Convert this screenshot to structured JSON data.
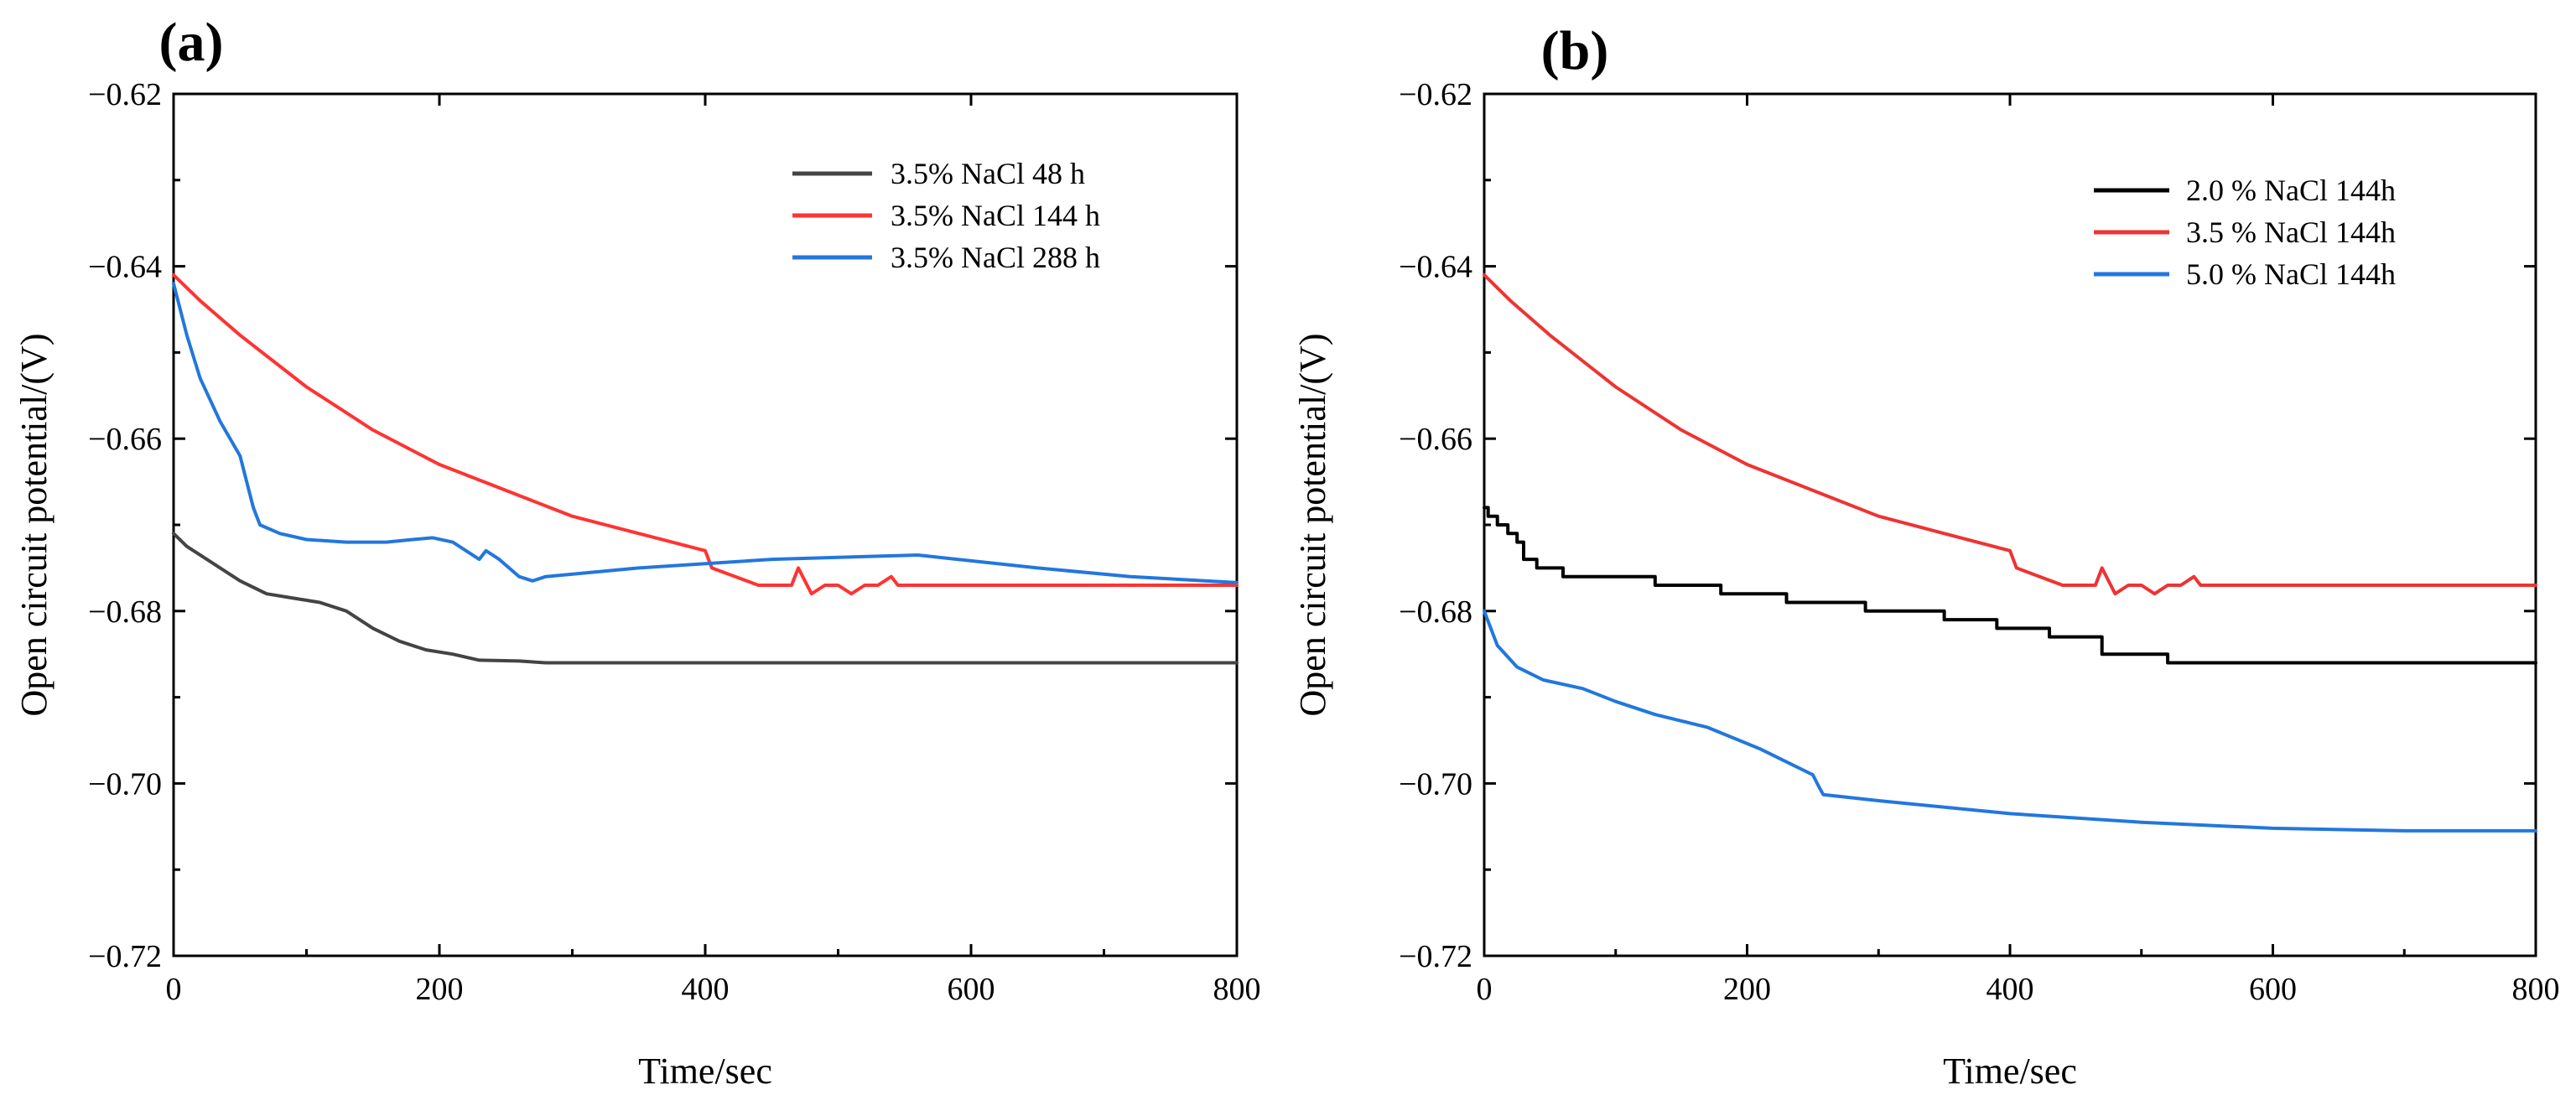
{
  "figure": {
    "panels": [
      "(a)",
      "(b)"
    ]
  },
  "chart_data": [
    {
      "type": "line",
      "panel_label": "(a)",
      "title": "",
      "xlabel": "Time/sec",
      "ylabel": "Open circuit potential/(V)",
      "xlim": [
        0,
        800
      ],
      "ylim": [
        -0.72,
        -0.62
      ],
      "xticks": [
        0,
        200,
        400,
        600,
        800
      ],
      "xtick_labels": [
        "0",
        "200",
        "400",
        "600",
        "800"
      ],
      "yticks": [
        -0.72,
        -0.7,
        -0.68,
        -0.66,
        -0.64,
        -0.62
      ],
      "ytick_labels": [
        "−0.72",
        "−0.70",
        "−0.68",
        "−0.66",
        "−0.64",
        "−0.62"
      ],
      "legend_position": "top-right",
      "grid": false,
      "series": [
        {
          "name": "3.5% NaCl 48 h",
          "color": "#444444",
          "x": [
            0,
            10,
            25,
            50,
            70,
            90,
            110,
            130,
            150,
            170,
            190,
            210,
            230,
            260,
            280,
            300,
            400,
            500,
            600,
            700,
            800
          ],
          "y": [
            -0.671,
            -0.6725,
            -0.674,
            -0.6765,
            -0.678,
            -0.6785,
            -0.679,
            -0.68,
            -0.682,
            -0.6835,
            -0.6845,
            -0.685,
            -0.6857,
            -0.6858,
            -0.686,
            -0.686,
            -0.686,
            -0.686,
            -0.686,
            -0.686,
            -0.686
          ]
        },
        {
          "name": "3.5% NaCl 144 h",
          "color": "#ff3333",
          "x": [
            0,
            20,
            50,
            100,
            150,
            200,
            250,
            300,
            350,
            400,
            405,
            440,
            455,
            465,
            470,
            480,
            490,
            500,
            510,
            520,
            530,
            540,
            545,
            550,
            600,
            700,
            800
          ],
          "y": [
            -0.641,
            -0.644,
            -0.648,
            -0.654,
            -0.659,
            -0.663,
            -0.666,
            -0.669,
            -0.671,
            -0.673,
            -0.675,
            -0.677,
            -0.677,
            -0.677,
            -0.675,
            -0.678,
            -0.677,
            -0.677,
            -0.678,
            -0.677,
            -0.677,
            -0.676,
            -0.677,
            -0.677,
            -0.677,
            -0.677,
            -0.677
          ]
        },
        {
          "name": "3.5% NaCl 288 h",
          "color": "#2277dd",
          "x": [
            0,
            10,
            20,
            35,
            50,
            55,
            60,
            65,
            80,
            100,
            130,
            160,
            180,
            195,
            210,
            230,
            235,
            245,
            260,
            270,
            280,
            350,
            450,
            560,
            650,
            720,
            800
          ],
          "y": [
            -0.642,
            -0.648,
            -0.653,
            -0.658,
            -0.662,
            -0.665,
            -0.668,
            -0.67,
            -0.671,
            -0.6717,
            -0.672,
            -0.672,
            -0.6717,
            -0.6715,
            -0.672,
            -0.674,
            -0.673,
            -0.674,
            -0.676,
            -0.6765,
            -0.676,
            -0.675,
            -0.674,
            -0.6735,
            -0.675,
            -0.676,
            -0.6767
          ]
        }
      ]
    },
    {
      "type": "line",
      "panel_label": "(b)",
      "title": "",
      "xlabel": "Time/sec",
      "ylabel": "Open circuit potential/(V)",
      "xlim": [
        0,
        800
      ],
      "ylim": [
        -0.72,
        -0.62
      ],
      "xticks": [
        0,
        200,
        400,
        600,
        800
      ],
      "xtick_labels": [
        "0",
        "200",
        "400",
        "600",
        "800"
      ],
      "yticks": [
        -0.72,
        -0.7,
        -0.68,
        -0.66,
        -0.64,
        -0.62
      ],
      "ytick_labels": [
        "−0.72",
        "−0.70",
        "−0.68",
        "−0.66",
        "−0.64",
        "−0.62"
      ],
      "legend_position": "top-right",
      "grid": false,
      "series": [
        {
          "name": "2.0 % NaCl 144h",
          "color": "#000000",
          "x": [
            0,
            3,
            3,
            10,
            10,
            18,
            18,
            25,
            25,
            30,
            30,
            40,
            40,
            60,
            60,
            130,
            130,
            180,
            180,
            230,
            230,
            290,
            290,
            350,
            350,
            390,
            390,
            430,
            430,
            470,
            470,
            520,
            520,
            800
          ],
          "y": [
            -0.668,
            -0.668,
            -0.669,
            -0.669,
            -0.67,
            -0.67,
            -0.671,
            -0.671,
            -0.672,
            -0.672,
            -0.674,
            -0.674,
            -0.675,
            -0.675,
            -0.676,
            -0.676,
            -0.677,
            -0.677,
            -0.678,
            -0.678,
            -0.679,
            -0.679,
            -0.68,
            -0.68,
            -0.681,
            -0.681,
            -0.682,
            -0.682,
            -0.683,
            -0.683,
            -0.685,
            -0.685,
            -0.686,
            -0.686
          ]
        },
        {
          "name": "3.5 % NaCl 144h",
          "color": "#ee3333",
          "x": [
            0,
            20,
            50,
            100,
            150,
            200,
            250,
            300,
            350,
            400,
            405,
            440,
            455,
            465,
            470,
            480,
            490,
            500,
            510,
            520,
            530,
            540,
            545,
            550,
            600,
            700,
            800
          ],
          "y": [
            -0.641,
            -0.644,
            -0.648,
            -0.654,
            -0.659,
            -0.663,
            -0.666,
            -0.669,
            -0.671,
            -0.673,
            -0.675,
            -0.677,
            -0.677,
            -0.677,
            -0.675,
            -0.678,
            -0.677,
            -0.677,
            -0.678,
            -0.677,
            -0.677,
            -0.676,
            -0.677,
            -0.677,
            -0.677,
            -0.677,
            -0.677
          ]
        },
        {
          "name": "5.0 % NaCl 144h",
          "color": "#2277dd",
          "x": [
            0,
            10,
            25,
            45,
            75,
            100,
            130,
            170,
            210,
            250,
            255,
            258,
            300,
            400,
            500,
            600,
            700,
            800
          ],
          "y": [
            -0.68,
            -0.684,
            -0.6865,
            -0.688,
            -0.689,
            -0.6905,
            -0.692,
            -0.6935,
            -0.696,
            -0.699,
            -0.7005,
            -0.7013,
            -0.702,
            -0.7035,
            -0.7045,
            -0.7052,
            -0.7055,
            -0.7055
          ]
        }
      ]
    }
  ]
}
